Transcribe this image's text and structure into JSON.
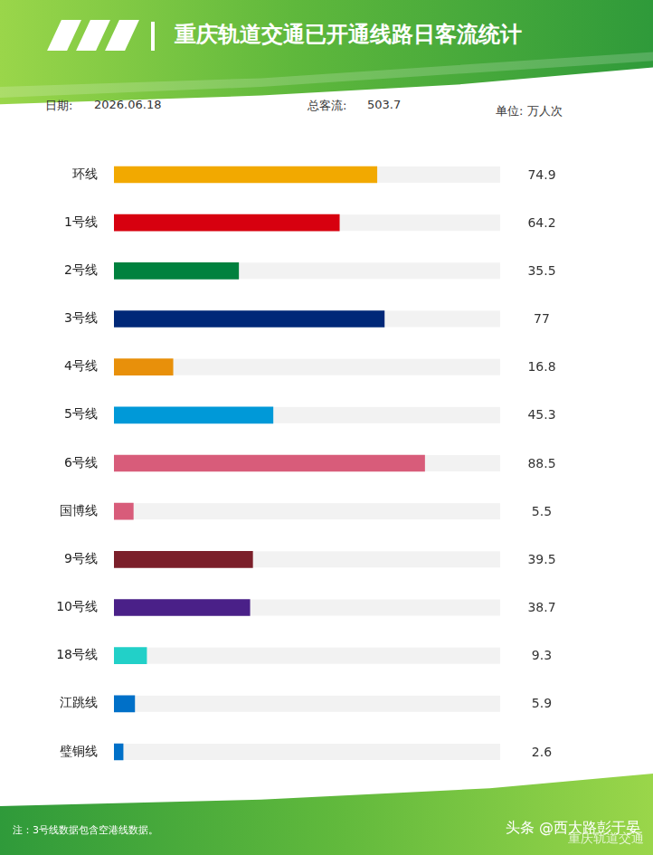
{
  "header": {
    "title": "重庆轨道交通已开通线路日客流统计",
    "date_label": "日期:",
    "date": "2026.06.18",
    "total_label": "总客流:",
    "total": 503.7,
    "unit": "单位: 万人次"
  },
  "chart_data": {
    "type": "bar",
    "orientation": "horizontal",
    "categories": [
      "环线",
      "1号线",
      "2号线",
      "3号线",
      "4号线",
      "5号线",
      "6号线",
      "国博线",
      "9号线",
      "10号线",
      "18号线",
      "江跳线",
      "璧铜线"
    ],
    "values": [
      74.9,
      64.2,
      35.5,
      77,
      16.8,
      45.3,
      88.5,
      5.5,
      39.5,
      38.7,
      9.3,
      5.9,
      2.6
    ],
    "colors": [
      "#f2a900",
      "#d7000f",
      "#00813e",
      "#002878",
      "#e8900a",
      "#0099d8",
      "#d85c7a",
      "#d85c7a",
      "#7b1f2a",
      "#4a2088",
      "#22d0c8",
      "#0070c8",
      "#0070c8"
    ],
    "xlim": [
      0,
      110
    ],
    "grid": false,
    "tick_labels": "y",
    "data_labels": true
  },
  "footer": {
    "note": "注：3号线数据包含空港线数据。",
    "watermark": "头条 @西大路彭于晏",
    "watermark_sub": "重庆轨道交通"
  }
}
